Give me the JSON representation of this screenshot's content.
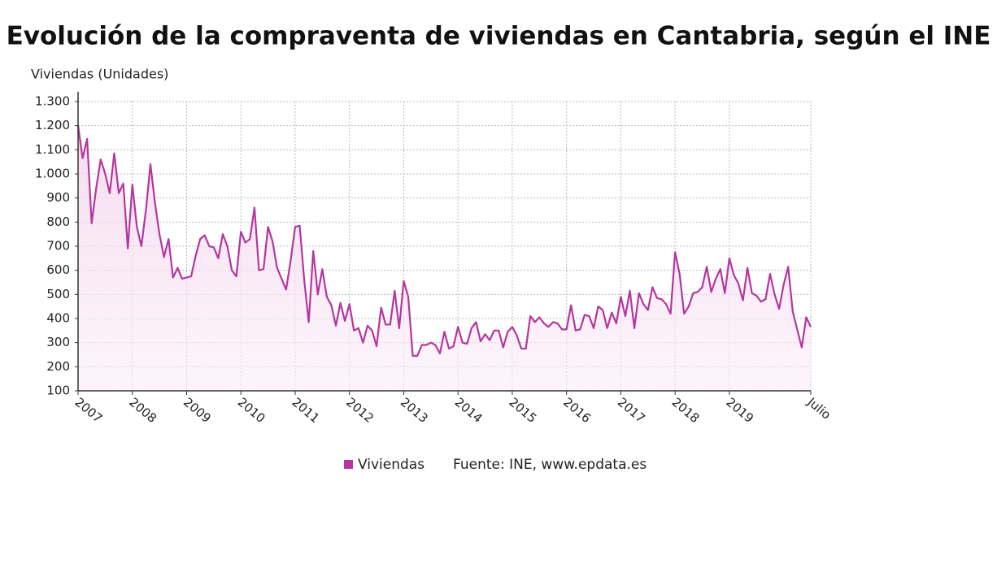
{
  "chart_data": {
    "type": "line",
    "title": "Evolución de la compraventa de viviendas en Cantabria, según el INE",
    "y_label": "Viviendas (Unidades)",
    "source": "Fuente: INE, www.epdata.es",
    "categories": [
      "2007",
      null,
      null,
      null,
      null,
      null,
      null,
      null,
      null,
      null,
      null,
      null,
      "2008",
      null,
      null,
      null,
      null,
      null,
      null,
      null,
      null,
      null,
      null,
      null,
      "2009",
      null,
      null,
      null,
      null,
      null,
      null,
      null,
      null,
      null,
      null,
      null,
      "2010",
      null,
      null,
      null,
      null,
      null,
      null,
      null,
      null,
      null,
      null,
      null,
      "2011",
      null,
      null,
      null,
      null,
      null,
      null,
      null,
      null,
      null,
      null,
      null,
      "2012",
      null,
      null,
      null,
      null,
      null,
      null,
      null,
      null,
      null,
      null,
      null,
      "2013",
      null,
      null,
      null,
      null,
      null,
      null,
      null,
      null,
      null,
      null,
      null,
      "2014",
      null,
      null,
      null,
      null,
      null,
      null,
      null,
      null,
      null,
      null,
      null,
      "2015",
      null,
      null,
      null,
      null,
      null,
      null,
      null,
      null,
      null,
      null,
      null,
      "2016",
      null,
      null,
      null,
      null,
      null,
      null,
      null,
      null,
      null,
      null,
      null,
      "2017",
      null,
      null,
      null,
      null,
      null,
      null,
      null,
      null,
      null,
      null,
      null,
      "2018",
      null,
      null,
      null,
      null,
      null,
      null,
      null,
      null,
      null,
      null,
      null,
      "2019",
      null,
      null,
      null,
      null,
      null,
      null,
      null,
      null,
      null,
      null,
      null,
      null,
      null,
      null,
      null,
      null,
      null,
      "Julio"
    ],
    "series": [
      {
        "name": "Viviendas",
        "color": "#b4369f",
        "values": [
          1200,
          1065,
          1145,
          795,
          940,
          1060,
          1000,
          920,
          1085,
          920,
          960,
          690,
          955,
          780,
          700,
          850,
          1040,
          880,
          750,
          655,
          730,
          570,
          610,
          565,
          570,
          575,
          660,
          730,
          745,
          700,
          695,
          650,
          750,
          700,
          600,
          575,
          760,
          715,
          730,
          860,
          600,
          605,
          780,
          720,
          610,
          565,
          520,
          640,
          780,
          785,
          560,
          385,
          680,
          500,
          605,
          490,
          455,
          370,
          465,
          390,
          460,
          350,
          360,
          300,
          370,
          350,
          285,
          445,
          375,
          375,
          515,
          360,
          555,
          490,
          245,
          245,
          290,
          290,
          300,
          290,
          255,
          345,
          275,
          285,
          365,
          300,
          295,
          360,
          385,
          305,
          335,
          310,
          350,
          350,
          280,
          345,
          365,
          330,
          275,
          275,
          410,
          385,
          405,
          380,
          365,
          385,
          380,
          355,
          355,
          455,
          350,
          355,
          415,
          410,
          360,
          450,
          435,
          360,
          425,
          380,
          490,
          410,
          515,
          360,
          505,
          460,
          435,
          530,
          485,
          480,
          460,
          420,
          675,
          585,
          420,
          450,
          505,
          510,
          530,
          615,
          510,
          565,
          605,
          505,
          650,
          580,
          545,
          475,
          610,
          505,
          495,
          470,
          480,
          585,
          500,
          440,
          540,
          615,
          430,
          355,
          280,
          405,
          365
        ]
      }
    ],
    "ylim": [
      100,
      1300
    ],
    "yticks": [
      100,
      200,
      300,
      400,
      500,
      600,
      700,
      800,
      900,
      {
        "value": 1000,
        "label": "1.000"
      },
      {
        "value": 1100,
        "label": "1.100"
      },
      {
        "value": 1200,
        "label": "1.200"
      },
      {
        "value": 1300,
        "label": "1.300"
      }
    ],
    "grid": true
  }
}
